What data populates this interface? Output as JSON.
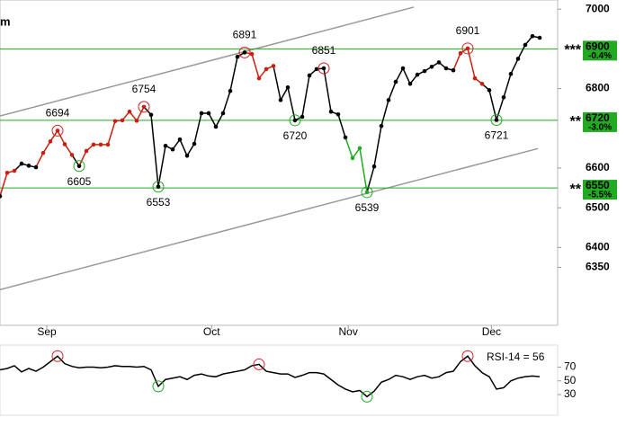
{
  "chart_data": {
    "type": "line",
    "title": "m",
    "x": [
      0,
      1,
      2,
      3,
      4,
      5,
      6,
      7,
      8,
      9,
      10,
      11,
      12,
      13,
      14,
      15,
      16,
      17,
      18,
      19,
      20,
      21,
      22,
      23,
      24,
      25,
      26,
      27,
      28,
      29,
      30,
      31,
      32,
      33,
      34,
      35,
      36,
      37,
      38,
      39,
      40,
      41,
      42,
      43,
      44,
      45,
      46,
      47,
      48,
      49,
      50,
      51,
      52,
      53,
      54,
      55,
      56,
      57,
      58,
      59,
      60,
      61,
      62,
      63,
      64,
      65,
      66,
      67,
      68,
      69,
      70,
      71,
      72,
      73,
      74,
      75
    ],
    "xlim": [
      0,
      77.5
    ],
    "xticks": [
      {
        "value": 6.5,
        "label": "Sep"
      },
      {
        "value": 29.4,
        "label": "Oct"
      },
      {
        "value": 48.4,
        "label": "Nov"
      },
      {
        "value": 68.3,
        "label": "Dec"
      }
    ],
    "ylim": [
      6204,
      7023
    ],
    "yticks": [
      7000,
      6800,
      6600,
      6500,
      6400,
      6350
    ],
    "series": [
      {
        "values": [
          6529,
          6588,
          6593,
          6611,
          6606,
          6602,
          6638,
          6667,
          6694,
          6660,
          6633,
          6605,
          6643,
          6659,
          6659,
          6659,
          6718,
          6720,
          6742,
          6719,
          6754,
          6734,
          6553,
          6656,
          6647,
          6672,
          6631,
          6661,
          6738,
          6738,
          6704,
          6738,
          6794,
          6880,
          6891,
          6887,
          6826,
          6849,
          6857,
          6771,
          6803,
          6720,
          6729,
          6833,
          6849,
          6851,
          6742,
          6735,
          6677,
          6625,
          6650,
          6539,
          6604,
          6706,
          6771,
          6817,
          6851,
          6812,
          6835,
          6844,
          6855,
          6866,
          6851,
          6846,
          6889,
          6901,
          6826,
          6812,
          6796,
          6721,
          6778,
          6837,
          6875,
          6910,
          6932,
          6928
        ],
        "point_colors": [
          "#000000",
          "#c8200e",
          "#c8200e",
          "#000000",
          "#000000",
          "#000000",
          "#c8200e",
          "#c8200e",
          "#c8200e",
          "#c8200e",
          "#c8200e",
          "#000000",
          "#c8200e",
          "#c8200e",
          "#c8200e",
          "#c8200e",
          "#c8200e",
          "#c8200e",
          "#c8200e",
          "#c8200e",
          "#c8200e",
          "#000000",
          "#000000",
          "#000000",
          "#000000",
          "#000000",
          "#000000",
          "#000000",
          "#000000",
          "#000000",
          "#000000",
          "#000000",
          "#000000",
          "#000000",
          "#000000",
          "#c8200e",
          "#c8200e",
          "#c8200e",
          "#c8200e",
          "#000000",
          "#000000",
          "#000000",
          "#000000",
          "#000000",
          "#000000",
          "#000000",
          "#000000",
          "#000000",
          "#000000",
          "#22aa22",
          "#22aa22",
          "#22aa22",
          "#000000",
          "#000000",
          "#000000",
          "#000000",
          "#000000",
          "#000000",
          "#000000",
          "#000000",
          "#000000",
          "#000000",
          "#000000",
          "#000000",
          "#c8200e",
          "#c8200e",
          "#c8200e",
          "#c8200e",
          "#000000",
          "#000000",
          "#000000",
          "#000000",
          "#000000",
          "#000000",
          "#000000",
          "#000000"
        ]
      }
    ],
    "annotations": [
      {
        "x": 8,
        "value": 6694,
        "kind": "high"
      },
      {
        "x": 11,
        "value": 6605,
        "kind": "low"
      },
      {
        "x": 20,
        "value": 6754,
        "kind": "high"
      },
      {
        "x": 22,
        "value": 6553,
        "kind": "low"
      },
      {
        "x": 34,
        "value": 6891,
        "kind": "high"
      },
      {
        "x": 41,
        "value": 6720,
        "kind": "low"
      },
      {
        "x": 45,
        "value": 6851,
        "kind": "high"
      },
      {
        "x": 51,
        "value": 6539,
        "kind": "low"
      },
      {
        "x": 65,
        "value": 6901,
        "kind": "high"
      },
      {
        "x": 69,
        "value": 6721,
        "kind": "low"
      }
    ],
    "trendlines": [
      {
        "x": [
          0,
          57.5
        ],
        "values": [
          6731,
          7005
        ]
      },
      {
        "x": [
          0,
          74.75
        ],
        "values": [
          6294,
          6649
        ]
      }
    ],
    "levels": [
      {
        "value": 6900,
        "stars": "***",
        "change": "-0.4%"
      },
      {
        "value": 6720,
        "stars": "**",
        "change": "-3.0%"
      },
      {
        "value": 6550,
        "stars": "**",
        "change": "-5.5%"
      }
    ],
    "level_color": "#22aa22",
    "rsi": {
      "label": "RSI-14 = 56",
      "ylim": [
        0,
        102
      ],
      "yticks": [
        70,
        50,
        30
      ],
      "values": [
        66,
        68,
        72,
        63,
        68,
        64,
        70,
        78,
        86,
        75,
        71,
        69,
        70,
        70,
        69,
        70,
        72,
        71,
        71,
        70,
        71,
        66,
        42,
        52,
        54,
        56,
        52,
        58,
        60,
        57,
        56,
        60,
        62,
        64,
        66,
        72,
        74,
        64,
        62,
        60,
        60,
        55,
        58,
        62,
        62,
        60,
        52,
        44,
        38,
        34,
        36,
        27,
        35,
        48,
        52,
        58,
        56,
        52,
        56,
        58,
        54,
        56,
        62,
        64,
        78,
        86,
        72,
        62,
        56,
        38,
        40,
        50,
        54,
        56,
        57,
        56
      ],
      "markers": [
        {
          "x": 8,
          "kind": "high"
        },
        {
          "x": 22,
          "kind": "low"
        },
        {
          "x": 36,
          "kind": "high"
        },
        {
          "x": 51,
          "kind": "low"
        },
        {
          "x": 65,
          "kind": "high"
        }
      ]
    }
  }
}
